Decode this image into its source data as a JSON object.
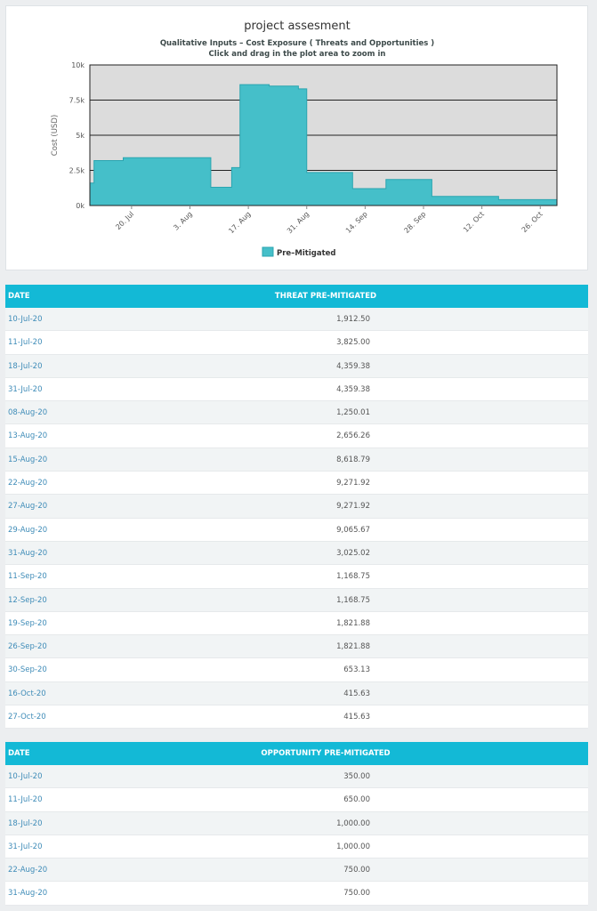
{
  "chart_data": {
    "type": "area",
    "title": "project assesment",
    "subtitle_1": "Qualitative Inputs – Cost Exposure ( Threats and Opportunities )",
    "subtitle_2": "Click and drag in the plot area to zoom in",
    "xlabel": "",
    "ylabel": "Cost (USD)",
    "ylim": [
      0,
      10000
    ],
    "y_ticks": [
      0,
      2500,
      5000,
      7500,
      10000
    ],
    "y_tick_labels": [
      "0k",
      "2.5k",
      "5k",
      "7.5k",
      "10k"
    ],
    "x_tick_dates": [
      "2020-07-20",
      "2020-08-03",
      "2020-08-17",
      "2020-08-31",
      "2020-09-14",
      "2020-09-28",
      "2020-10-12",
      "2020-10-26"
    ],
    "x_tick_labels": [
      "20. Jul",
      "3. Aug",
      "17. Aug",
      "31. Aug",
      "14. Sep",
      "28. Sep",
      "12. Oct",
      "26. Oct"
    ],
    "xlim": [
      "2020-07-10",
      "2020-10-30"
    ],
    "step": true,
    "grid": true,
    "legend_position": "bottom",
    "colors": {
      "series": "#45bfc9",
      "stroke": "#2aa5b0",
      "plot_bg": "#dcdcdc",
      "grid": "#222222"
    },
    "series": [
      {
        "name": "Pre–Mitigated",
        "points": [
          [
            "2020-07-10",
            1600
          ],
          [
            "2020-07-11",
            3200
          ],
          [
            "2020-07-18",
            3400
          ],
          [
            "2020-07-31",
            3400
          ],
          [
            "2020-08-08",
            1300
          ],
          [
            "2020-08-13",
            2700
          ],
          [
            "2020-08-15",
            8600
          ],
          [
            "2020-08-22",
            8500
          ],
          [
            "2020-08-27",
            8500
          ],
          [
            "2020-08-29",
            8300
          ],
          [
            "2020-08-31",
            2350
          ],
          [
            "2020-09-11",
            1200
          ],
          [
            "2020-09-19",
            1850
          ],
          [
            "2020-09-30",
            650
          ],
          [
            "2020-10-16",
            420
          ],
          [
            "2020-10-30",
            420
          ]
        ]
      }
    ]
  },
  "threat_table": {
    "headers": [
      "DATE",
      "THREAT PRE-MITIGATED"
    ],
    "rows": [
      [
        "10-Jul-20",
        "1,912.50"
      ],
      [
        "11-Jul-20",
        "3,825.00"
      ],
      [
        "18-Jul-20",
        "4,359.38"
      ],
      [
        "31-Jul-20",
        "4,359.38"
      ],
      [
        "08-Aug-20",
        "1,250.01"
      ],
      [
        "13-Aug-20",
        "2,656.26"
      ],
      [
        "15-Aug-20",
        "8,618.79"
      ],
      [
        "22-Aug-20",
        "9,271.92"
      ],
      [
        "27-Aug-20",
        "9,271.92"
      ],
      [
        "29-Aug-20",
        "9,065.67"
      ],
      [
        "31-Aug-20",
        "3,025.02"
      ],
      [
        "11-Sep-20",
        "1,168.75"
      ],
      [
        "12-Sep-20",
        "1,168.75"
      ],
      [
        "19-Sep-20",
        "1,821.88"
      ],
      [
        "26-Sep-20",
        "1,821.88"
      ],
      [
        "30-Sep-20",
        "653.13"
      ],
      [
        "16-Oct-20",
        "415.63"
      ],
      [
        "27-Oct-20",
        "415.63"
      ]
    ]
  },
  "opportunity_table": {
    "headers": [
      "DATE",
      "OPPORTUNITY PRE-MITIGATED"
    ],
    "rows": [
      [
        "10-Jul-20",
        "350.00"
      ],
      [
        "11-Jul-20",
        "650.00"
      ],
      [
        "18-Jul-20",
        "1,000.00"
      ],
      [
        "31-Jul-20",
        "1,000.00"
      ],
      [
        "22-Aug-20",
        "750.00"
      ],
      [
        "31-Aug-20",
        "750.00"
      ]
    ]
  }
}
